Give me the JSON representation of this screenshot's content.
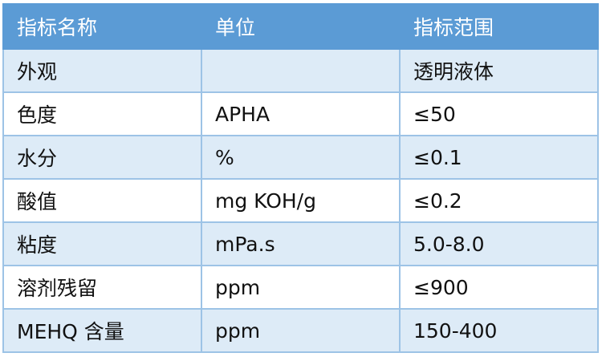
{
  "headers": [
    "指标名称",
    "单位",
    "指标范围"
  ],
  "rows": [
    [
      "外观",
      "",
      "透明液体"
    ],
    [
      "色度",
      "APHA",
      "≤50"
    ],
    [
      "水分",
      "%",
      "≤0.1"
    ],
    [
      "酸值",
      "mg KOH/g",
      "≤0.2"
    ],
    [
      "粘度",
      "mPa.s",
      "5.0-8.0"
    ],
    [
      "溶剂残留",
      "ppm",
      "≤900"
    ],
    [
      "MEHQ 含量",
      "ppm",
      "150-400"
    ]
  ],
  "colors": {
    "header_bg": "#5b9bd5",
    "stripe_bg": "#ddebf7",
    "border": "#9dc3e6"
  }
}
